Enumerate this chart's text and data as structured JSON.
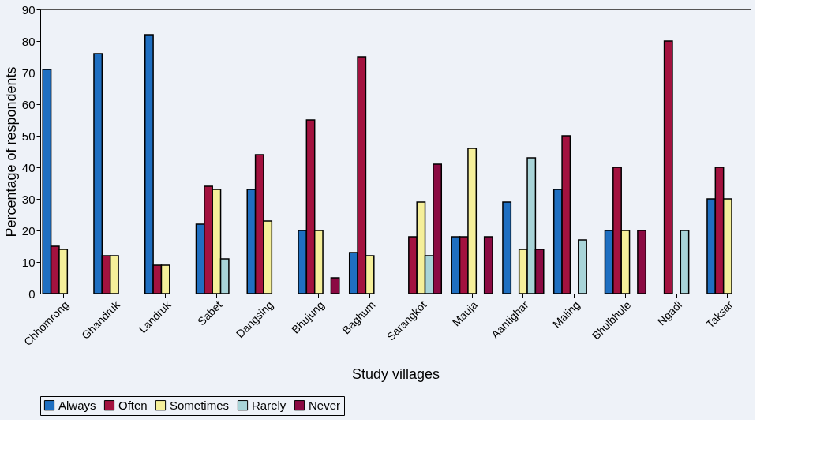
{
  "chart_data": {
    "type": "bar",
    "xlabel": "Study villages",
    "ylabel": "Percentage of respondents",
    "categories": [
      "Chhomrong",
      "Ghandruk",
      "Landruk",
      "Sabet",
      "Dangsing",
      "Bhujung",
      "Baghum",
      "Sarangkot",
      "Mauja",
      "Aantighar",
      "Maling",
      "Bhulbhule",
      "Ngadi",
      "Taksar"
    ],
    "series": [
      {
        "name": "Always",
        "color": "#1f6fc1",
        "values": [
          71,
          76,
          82,
          22,
          33,
          20,
          13,
          null,
          18,
          29,
          33,
          20,
          null,
          30
        ]
      },
      {
        "name": "Often",
        "color": "#a3123f",
        "values": [
          15,
          12,
          9,
          34,
          44,
          55,
          75,
          18,
          18,
          null,
          50,
          40,
          80,
          40
        ]
      },
      {
        "name": "Sometimes",
        "color": "#f5ef9a",
        "values": [
          14,
          12,
          9,
          33,
          23,
          20,
          12,
          29,
          46,
          14,
          null,
          20,
          null,
          30
        ]
      },
      {
        "name": "Rarely",
        "color": "#a8d4d8",
        "values": [
          null,
          null,
          null,
          11,
          null,
          null,
          null,
          12,
          null,
          43,
          17,
          null,
          20,
          null
        ]
      },
      {
        "name": "Never",
        "color": "#8b0a43",
        "values": [
          null,
          null,
          null,
          null,
          null,
          5,
          null,
          41,
          18,
          14,
          null,
          20,
          null,
          null
        ]
      }
    ],
    "ylim": [
      0,
      90
    ],
    "yticks": [
      0,
      10,
      20,
      30,
      40,
      50,
      60,
      70,
      80,
      90
    ],
    "grid": false,
    "legend": "bottom"
  }
}
